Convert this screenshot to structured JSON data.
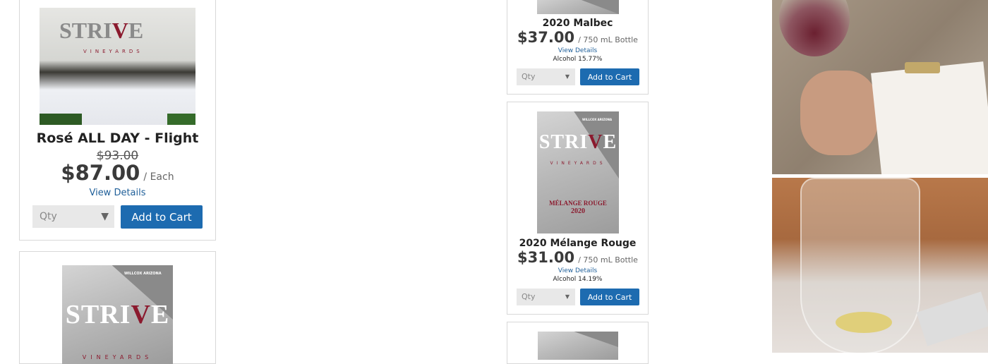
{
  "products": [
    {
      "name": "Rosé ALL DAY - Flight",
      "old_price": "$93.00",
      "price": "$87.00",
      "unit": "/ Each",
      "details": "View Details",
      "qty": "Qty",
      "cart": "Add to Cart",
      "image_lettering": "STRIVE VINEYARDS"
    },
    {
      "name": "2020 Malbec",
      "price": "$37.00",
      "unit": "/ 750 mL Bottle",
      "details": "View Details",
      "alcohol": "Alcohol 15.77%",
      "qty": "Qty",
      "cart": "Add to Cart"
    },
    {
      "name": "2020 Mélange Rouge",
      "price": "$31.00",
      "unit": "/ 750 mL Bottle",
      "details": "View Details",
      "alcohol": "Alcohol 14.19%",
      "qty": "Qty",
      "cart": "Add to Cart",
      "label_lettering": "WILLCOX ARIZONA STRIVE VINEYARDS Mélange Rouge 2020"
    },
    {
      "label_lettering": "WILLCOX ARIZONA STRIVE VINEYARDS"
    }
  ],
  "labels": {
    "willcox": "WILLCOX ARIZONA",
    "strive_a": "STRI",
    "strive_v": "V",
    "strive_e": "E",
    "vineyards": "VINEYARDS",
    "melange": "MÉLANGE ROUGE",
    "year": "2020"
  },
  "colors": {
    "button": "#1d6bb0",
    "link": "#1f5f99",
    "wine": "#8b1a2e"
  }
}
